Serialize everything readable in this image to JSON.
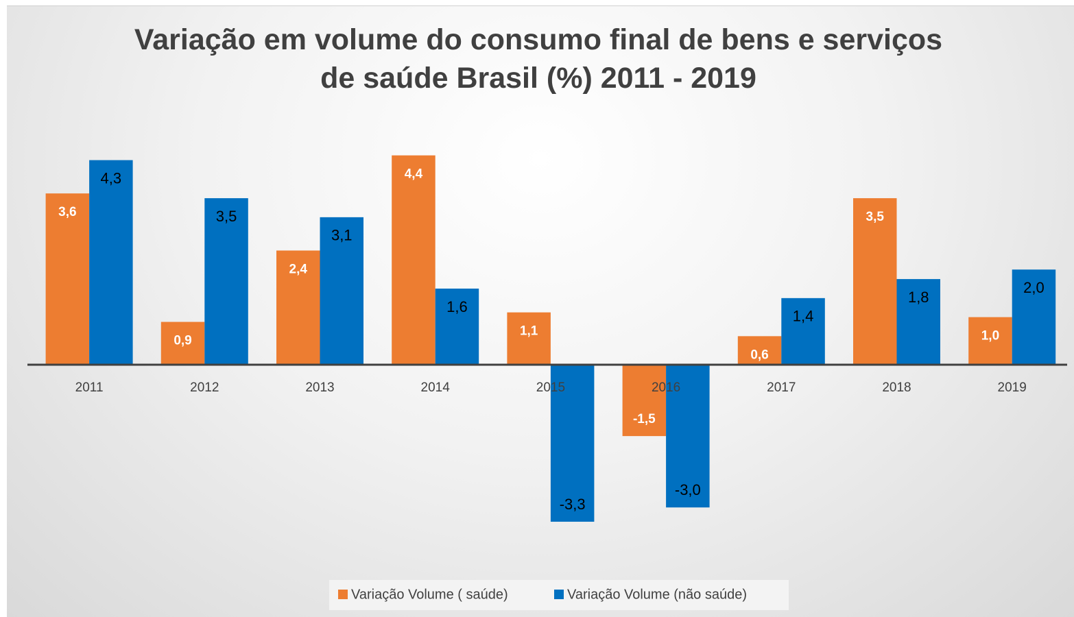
{
  "chart_data": {
    "type": "bar",
    "title": "Variação em volume do consumo final de bens e serviços de saúde Brasil (%) 2011 - 2019",
    "categories": [
      "2011",
      "2012",
      "2013",
      "2014",
      "2015",
      "2016",
      "2017",
      "2018",
      "2019"
    ],
    "series": [
      {
        "name": "Variação Volume ( saúde)",
        "color": "#ed7d31",
        "values": [
          3.6,
          0.9,
          2.4,
          4.4,
          1.1,
          -1.5,
          0.6,
          3.5,
          1.0
        ],
        "value_labels": [
          "3,6",
          "0,9",
          "2,4",
          "4,4",
          "1,1",
          "-1,5",
          "0,6",
          "3,5",
          "1,0"
        ]
      },
      {
        "name": "Variação Volume (não saúde)",
        "color": "#0070c0",
        "values": [
          4.3,
          3.5,
          3.1,
          1.6,
          -3.3,
          -3.0,
          1.4,
          1.8,
          2.0
        ],
        "value_labels": [
          "4,3",
          "3,5",
          "3,1",
          "1,6",
          "-3,3",
          "-3,0",
          "1,4",
          "1,8",
          "2,0"
        ]
      }
    ],
    "ylim": [
      -5,
      5
    ],
    "legend": "bottom"
  }
}
